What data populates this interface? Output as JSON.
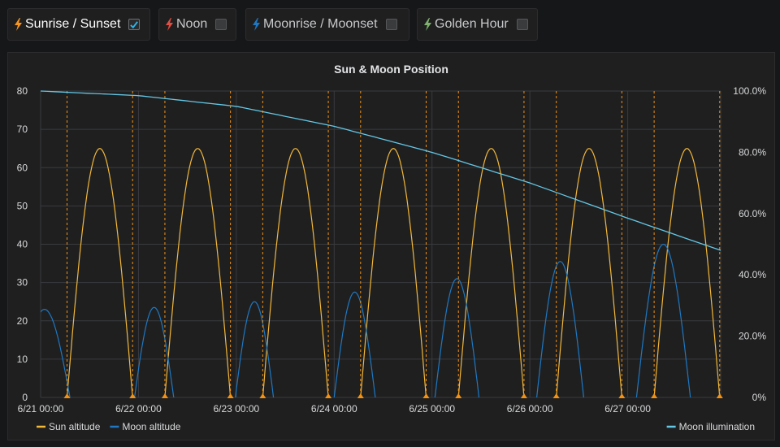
{
  "toggles": [
    {
      "label": "Sunrise / Sunset",
      "checked": true,
      "bolt_color": "#f79520"
    },
    {
      "label": "Noon",
      "checked": false,
      "bolt_color": "#e24d42"
    },
    {
      "label": "Moonrise / Moonset",
      "checked": false,
      "bolt_color": "#1f78c1"
    },
    {
      "label": "Golden Hour",
      "checked": false,
      "bolt_color": "#7eb26d"
    }
  ],
  "panel": {
    "title": "Sun & Moon Position"
  },
  "chart_data": {
    "type": "line",
    "title": "Sun & Moon Position",
    "x_unit": "days from 6/21 00:00",
    "x_range": [
      0,
      6.95
    ],
    "x_ticks": [
      {
        "x": 0,
        "label": "6/21 00:00"
      },
      {
        "x": 1,
        "label": "6/22 00:00"
      },
      {
        "x": 2,
        "label": "6/23 00:00"
      },
      {
        "x": 3,
        "label": "6/24 00:00"
      },
      {
        "x": 4,
        "label": "6/25 00:00"
      },
      {
        "x": 5,
        "label": "6/26 00:00"
      },
      {
        "x": 6,
        "label": "6/27 00:00"
      }
    ],
    "y_left": {
      "min": 0,
      "max": 80,
      "ticks": [
        "0",
        "10",
        "20",
        "30",
        "40",
        "50",
        "60",
        "70",
        "80"
      ]
    },
    "y_right": {
      "min": 0,
      "max": 100,
      "ticks": [
        "0%",
        "20.0%",
        "40.0%",
        "60.0%",
        "80.0%",
        "100.0%"
      ]
    },
    "grid": true,
    "legend_left": [
      "Sun altitude",
      "Moon altitude"
    ],
    "legend_right": [
      "Moon illumination"
    ],
    "series": [
      {
        "name": "Sun altitude",
        "axis": "left",
        "color": "#f2b83a",
        "arcs": [
          {
            "rise": 0.27,
            "set": 0.94,
            "peak": 65
          },
          {
            "rise": 1.27,
            "set": 1.94,
            "peak": 65
          },
          {
            "rise": 2.27,
            "set": 2.94,
            "peak": 65
          },
          {
            "rise": 3.27,
            "set": 3.94,
            "peak": 65
          },
          {
            "rise": 4.27,
            "set": 4.94,
            "peak": 65
          },
          {
            "rise": 5.27,
            "set": 5.94,
            "peak": 65
          },
          {
            "rise": 6.27,
            "set": 6.94,
            "peak": 65
          }
        ]
      },
      {
        "name": "Moon altitude",
        "axis": "left",
        "color": "#1f78c1",
        "arcs": [
          {
            "rise": -0.22,
            "set": 0.3,
            "peak": 23
          },
          {
            "rise": 0.96,
            "set": 1.36,
            "peak": 23.5
          },
          {
            "rise": 1.99,
            "set": 2.38,
            "peak": 25
          },
          {
            "rise": 3.0,
            "set": 3.42,
            "peak": 27.5
          },
          {
            "rise": 4.03,
            "set": 4.48,
            "peak": 31
          },
          {
            "rise": 5.07,
            "set": 5.55,
            "peak": 35.5
          },
          {
            "rise": 6.09,
            "set": 6.64,
            "peak": 40
          }
        ]
      },
      {
        "name": "Moon illumination",
        "axis": "right",
        "color": "#64c7e4",
        "points": [
          [
            0,
            100
          ],
          [
            1,
            98.5
          ],
          [
            2,
            95
          ],
          [
            3,
            88.5
          ],
          [
            4,
            80
          ],
          [
            5,
            70
          ],
          [
            6,
            58.5
          ],
          [
            6.95,
            48
          ]
        ]
      }
    ],
    "sunrise_sunset_markers": [
      0.27,
      0.94,
      1.27,
      1.94,
      2.27,
      2.94,
      3.27,
      3.94,
      4.27,
      4.94,
      5.27,
      5.94,
      6.27,
      6.94
    ],
    "marker_color": "#f29113"
  }
}
